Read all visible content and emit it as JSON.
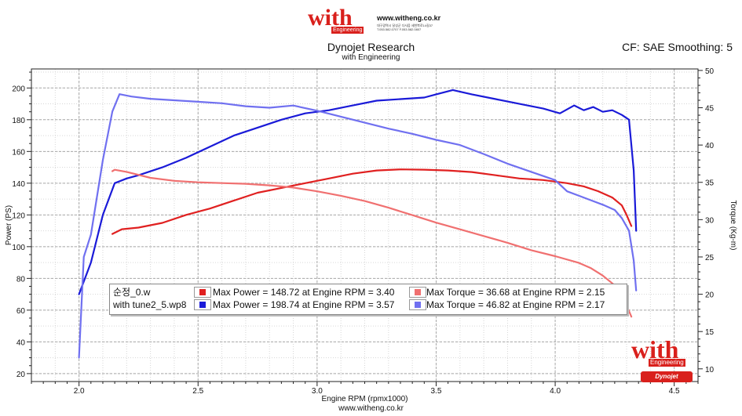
{
  "header": {
    "logo_text": "with",
    "logo_sub": "Engineering",
    "logo_url": "www.witheng.co.kr",
    "logo_address": "대구광역시 달성군 다사읍 세천북로14길37",
    "logo_phone": "T.053.582.0707 F.053.582.0807",
    "title": "Dynojet Research",
    "subtitle": "with Engineering",
    "cf_text": "CF: SAE Smoothing: 5"
  },
  "footer": {
    "url": "www.witheng.co.kr"
  },
  "watermark": {
    "logo_text": "with",
    "logo_sub": "Engineering",
    "badge_text": "Dynojet"
  },
  "legend": {
    "rows": [
      {
        "name": "순정_0.w",
        "power_text": "Max Power = 148.72 at Engine RPM = 3.40",
        "torque_text": "Max Torque = 36.68 at Engine RPM = 2.15",
        "power_color": "#e02020",
        "torque_color": "#f07070"
      },
      {
        "name": "with tune2_5.wp8",
        "power_text": "Max Power = 198.74 at Engine RPM = 3.57",
        "torque_text": "Max Torque = 46.82 at Engine RPM = 2.17",
        "power_color": "#1a1ad8",
        "torque_color": "#7070f0"
      }
    ]
  },
  "chart_data": {
    "type": "line",
    "title": "Dynojet Research",
    "subtitle": "with Engineering",
    "xlabel": "Engine RPM (rpmx1000)",
    "ylabel_left": "Power (PS)",
    "ylabel_right": "Torque (Kg-m)",
    "xlim": [
      1.8,
      4.6
    ],
    "ylim_left": [
      15,
      212
    ],
    "ylim_right": [
      8.3,
      50.2
    ],
    "x_ticks": [
      2.0,
      2.5,
      3.0,
      3.5,
      4.0,
      4.5
    ],
    "x_tick_labels": [
      "2.0",
      "2.5",
      "3.0",
      "3.5",
      "4.0",
      "4.5"
    ],
    "y_left_ticks": [
      20,
      40,
      60,
      80,
      100,
      120,
      140,
      160,
      180,
      200
    ],
    "y_left_tick_labels": [
      "20",
      "40",
      "60",
      "80",
      "100",
      "120",
      "140",
      "160",
      "180",
      "200"
    ],
    "y_right_ticks": [
      10,
      15,
      20,
      25,
      30,
      35,
      40,
      45,
      50
    ],
    "y_right_tick_labels": [
      "10",
      "15",
      "20",
      "25",
      "30",
      "35",
      "40",
      "45",
      "50"
    ],
    "grid": true,
    "series": [
      {
        "name": "순정_0.w Power",
        "axis": "left",
        "color": "#e02020",
        "x": [
          2.14,
          2.18,
          2.25,
          2.35,
          2.45,
          2.55,
          2.65,
          2.75,
          2.85,
          2.95,
          3.05,
          3.15,
          3.25,
          3.35,
          3.45,
          3.55,
          3.65,
          3.75,
          3.85,
          3.95,
          4.05,
          4.12,
          4.18,
          4.24,
          4.28,
          4.3,
          4.32
        ],
        "y": [
          108,
          111,
          112,
          115,
          120,
          124,
          129,
          134,
          137,
          140,
          143,
          146,
          148,
          148.7,
          148.5,
          148,
          147,
          145,
          143,
          142,
          140,
          138,
          135,
          131,
          126,
          120,
          113
        ]
      },
      {
        "name": "with tune2_5.wp8 Power",
        "axis": "left",
        "color": "#1a1ad8",
        "x": [
          2.0,
          2.05,
          2.1,
          2.15,
          2.2,
          2.25,
          2.35,
          2.45,
          2.55,
          2.65,
          2.75,
          2.85,
          2.95,
          3.05,
          3.15,
          3.25,
          3.35,
          3.45,
          3.5,
          3.57,
          3.65,
          3.75,
          3.85,
          3.95,
          4.02,
          4.08,
          4.12,
          4.16,
          4.2,
          4.24,
          4.28,
          4.31,
          4.33,
          4.34
        ],
        "y": [
          70,
          90,
          120,
          140,
          143,
          145,
          150,
          156,
          163,
          170,
          175,
          180,
          184,
          186,
          189,
          192,
          193,
          194,
          196,
          198.7,
          196,
          193,
          190,
          187,
          184,
          189,
          186,
          188,
          185,
          186,
          183,
          180,
          148,
          110
        ]
      },
      {
        "name": "순정_0.w Torque",
        "axis": "right",
        "color": "#f07070",
        "x": [
          2.14,
          2.15,
          2.2,
          2.3,
          2.4,
          2.5,
          2.6,
          2.7,
          2.8,
          2.9,
          3.0,
          3.1,
          3.2,
          3.3,
          3.4,
          3.5,
          3.6,
          3.7,
          3.8,
          3.9,
          4.0,
          4.1,
          4.15,
          4.2,
          4.25,
          4.28,
          4.3,
          4.32
        ],
        "y": [
          36.5,
          36.68,
          36.4,
          35.6,
          35.2,
          35.0,
          34.9,
          34.8,
          34.6,
          34.3,
          33.8,
          33.2,
          32.5,
          31.6,
          30.6,
          29.6,
          28.7,
          27.8,
          26.9,
          25.9,
          25.1,
          24.2,
          23.5,
          22.5,
          21.2,
          20.0,
          18.5,
          17.0
        ]
      },
      {
        "name": "with tune2_5.wp8 Torque",
        "axis": "right",
        "color": "#7070f0",
        "x": [
          2.0,
          2.02,
          2.05,
          2.1,
          2.14,
          2.17,
          2.22,
          2.3,
          2.4,
          2.5,
          2.6,
          2.7,
          2.8,
          2.9,
          3.0,
          3.1,
          3.2,
          3.3,
          3.4,
          3.5,
          3.6,
          3.7,
          3.8,
          3.9,
          4.0,
          4.05,
          4.1,
          4.15,
          4.2,
          4.25,
          4.28,
          4.31,
          4.33,
          4.34
        ],
        "y": [
          11.5,
          25,
          28,
          38,
          44.5,
          46.82,
          46.5,
          46.2,
          46.0,
          45.8,
          45.6,
          45.2,
          45.0,
          45.3,
          44.6,
          43.8,
          43.0,
          42.2,
          41.5,
          40.7,
          40.0,
          38.8,
          37.5,
          36.4,
          35.3,
          33.8,
          33.2,
          32.6,
          32.0,
          31.3,
          30.2,
          28.5,
          24.5,
          20.5
        ]
      }
    ]
  }
}
